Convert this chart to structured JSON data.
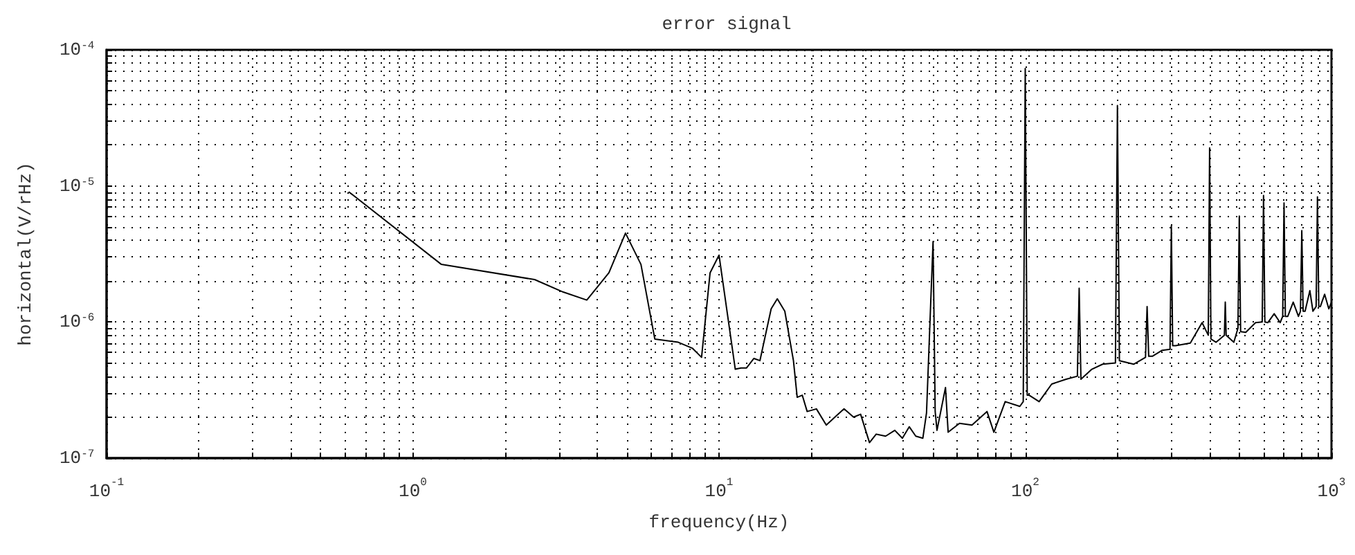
{
  "chart_data": {
    "type": "line",
    "title": "error signal",
    "xlabel": "frequency(Hz)",
    "ylabel": "horizontal(V/rHz)",
    "log": "xy",
    "grid": true,
    "marker": "none",
    "line_style": "solid",
    "xlim": [
      0.1,
      1000
    ],
    "ylim": [
      1e-07,
      0.0001
    ],
    "xticks": [
      {
        "value": 0.1,
        "label": "10$^{-1}$"
      },
      {
        "value": 0.2,
        "label": null
      },
      {
        "value": 0.3,
        "label": null
      },
      {
        "value": 0.4,
        "label": null
      },
      {
        "value": 0.5,
        "label": null
      },
      {
        "value": 0.6,
        "label": null
      },
      {
        "value": 0.7,
        "label": null
      },
      {
        "value": 0.8,
        "label": null
      },
      {
        "value": 0.9,
        "label": null
      },
      {
        "value": 1,
        "label": "10$^{0}$"
      },
      {
        "value": 2,
        "label": null
      },
      {
        "value": 3,
        "label": null
      },
      {
        "value": 4,
        "label": null
      },
      {
        "value": 5,
        "label": null
      },
      {
        "value": 6,
        "label": null
      },
      {
        "value": 7,
        "label": null
      },
      {
        "value": 8,
        "label": null
      },
      {
        "value": 9,
        "label": null
      },
      {
        "value": 10,
        "label": "10$^{1}$"
      },
      {
        "value": 20,
        "label": null
      },
      {
        "value": 30,
        "label": null
      },
      {
        "value": 40,
        "label": null
      },
      {
        "value": 50,
        "label": null
      },
      {
        "value": 60,
        "label": null
      },
      {
        "value": 70,
        "label": null
      },
      {
        "value": 80,
        "label": null
      },
      {
        "value": 90,
        "label": null
      },
      {
        "value": 100,
        "label": "10$^{2}$"
      },
      {
        "value": 200,
        "label": null
      },
      {
        "value": 300,
        "label": null
      },
      {
        "value": 400,
        "label": null
      },
      {
        "value": 500,
        "label": null
      },
      {
        "value": 600,
        "label": null
      },
      {
        "value": 700,
        "label": null
      },
      {
        "value": 800,
        "label": null
      },
      {
        "value": 900,
        "label": null
      },
      {
        "value": 1000,
        "label": "10$^{3}$"
      }
    ],
    "yticks": [
      {
        "value": 1e-07,
        "label": "10$^{-7}$"
      },
      {
        "value": 2e-07,
        "label": null
      },
      {
        "value": 3e-07,
        "label": null
      },
      {
        "value": 4e-07,
        "label": null
      },
      {
        "value": 5e-07,
        "label": null
      },
      {
        "value": 6e-07,
        "label": null
      },
      {
        "value": 7e-07,
        "label": null
      },
      {
        "value": 8e-07,
        "label": null
      },
      {
        "value": 9e-07,
        "label": null
      },
      {
        "value": 1e-06,
        "label": "10$^{-6}$"
      },
      {
        "value": 2e-06,
        "label": null
      },
      {
        "value": 3e-06,
        "label": null
      },
      {
        "value": 4e-06,
        "label": null
      },
      {
        "value": 5e-06,
        "label": null
      },
      {
        "value": 6e-06,
        "label": null
      },
      {
        "value": 7e-06,
        "label": null
      },
      {
        "value": 8e-06,
        "label": null
      },
      {
        "value": 9e-06,
        "label": null
      },
      {
        "value": 1e-05,
        "label": "10$^{-5}$"
      },
      {
        "value": 2e-05,
        "label": null
      },
      {
        "value": 3e-05,
        "label": null
      },
      {
        "value": 4e-05,
        "label": null
      },
      {
        "value": 5e-05,
        "label": null
      },
      {
        "value": 6e-05,
        "label": null
      },
      {
        "value": 7e-05,
        "label": null
      },
      {
        "value": 8e-05,
        "label": null
      },
      {
        "value": 9e-05,
        "label": null
      },
      {
        "value": 0.0001,
        "label": "10$^{-4}$"
      }
    ],
    "series": [
      {
        "color": "#000000",
        "x": [
          0.62,
          1.24,
          2.5,
          3.1,
          3.7,
          4.37,
          4.95,
          5.56,
          6.17,
          7.36,
          8.2,
          8.77,
          9.35,
          10,
          11.3,
          11.8,
          12.3,
          13.0,
          13.6,
          14.8,
          15.5,
          16.4,
          17.5,
          18.0,
          18.7,
          19.4,
          20.8,
          22.4,
          23.9,
          25.6,
          27.5,
          29.0,
          31.0,
          32.6,
          35.0,
          37.5,
          39.7,
          41.8,
          43.9,
          46.3,
          47.6,
          50,
          50.8,
          51.5,
          54.9,
          56.0,
          61,
          67,
          75,
          79,
          86,
          96,
          98.5,
          100,
          101.5,
          103,
          111,
          122,
          136,
          148,
          150,
          152,
          165,
          179,
          197,
          200,
          203,
          226,
          247,
          250,
          253,
          260,
          280,
          297,
          300,
          303,
          310,
          346,
          378,
          396,
          400,
          404,
          420,
          447,
          450,
          453,
          480,
          495,
          500,
          505,
          525,
          565,
          594,
          600,
          606,
          620,
          650,
          680,
          693,
          700,
          707,
          720,
          750,
          780,
          792,
          800,
          808,
          820,
          850,
          870,
          891,
          900,
          909,
          920,
          950,
          980,
          1000
        ],
        "values": [
          9e-06,
          2.65e-06,
          2.05e-06,
          1.66e-06,
          1.45e-06,
          2.3e-06,
          4.5e-06,
          2.65e-06,
          7.5e-07,
          7.1e-07,
          6.4e-07,
          5.5e-07,
          2.3e-06,
          3.1e-06,
          4.5e-07,
          4.6e-07,
          4.6e-07,
          5.4e-07,
          5.2e-07,
          1.25e-06,
          1.48e-06,
          1.2e-06,
          5.2e-07,
          2.8e-07,
          2.9e-07,
          2.2e-07,
          2.3e-07,
          1.75e-07,
          2e-07,
          2.3e-07,
          2e-07,
          2.1e-07,
          1.3e-07,
          1.5e-07,
          1.45e-07,
          1.6e-07,
          1.4e-07,
          1.7e-07,
          1.45e-07,
          1.4e-07,
          2.15e-07,
          3.9e-06,
          2.2e-07,
          1.6e-07,
          3.3e-07,
          1.55e-07,
          1.8e-07,
          1.75e-07,
          2.2e-07,
          1.55e-07,
          2.6e-07,
          2.4e-07,
          2.6e-07,
          7.3e-05,
          2.9e-07,
          2.9e-07,
          2.6e-07,
          3.5e-07,
          3.8e-07,
          4e-07,
          1.77e-06,
          3.8e-07,
          4.5e-07,
          4.9e-07,
          5e-07,
          3.9e-05,
          5.2e-07,
          4.9e-07,
          5.5e-07,
          1.3e-06,
          5.6e-07,
          5.6e-07,
          6.2e-07,
          6.3e-07,
          5.1e-06,
          6.7e-07,
          6.7e-07,
          7e-07,
          9.9e-07,
          8e-07,
          1.9e-05,
          7.5e-07,
          7.1e-07,
          8e-07,
          1.4e-06,
          8e-07,
          7.1e-07,
          9e-07,
          6e-06,
          8.5e-07,
          8.4e-07,
          9.9e-07,
          1e-06,
          8.5e-06,
          1e-06,
          9.9e-07,
          1.15e-06,
          9.9e-07,
          1.1e-06,
          7.5e-06,
          1.1e-06,
          1.1e-06,
          1.4e-06,
          1.1e-06,
          1.2e-06,
          4.7e-06,
          1.2e-06,
          1.2e-06,
          1.7e-06,
          1.2e-06,
          1.3e-06,
          8.3e-06,
          1.3e-06,
          1.3e-06,
          1.6e-06,
          1.25e-06,
          1.4e-06
        ]
      }
    ]
  }
}
